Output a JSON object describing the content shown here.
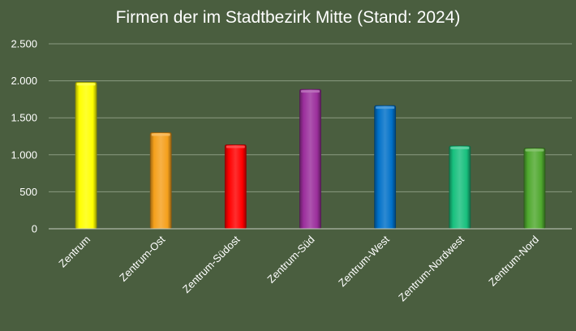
{
  "chart_data": {
    "type": "bar",
    "title": "Firmen der im Stadtbezirk Mitte (Stand: 2024)",
    "xlabel": "",
    "ylabel": "",
    "categories": [
      "Zentrum",
      "Zentrum-Ost",
      "Zentrum-Südost",
      "Zentrum-Süd",
      "Zentrum-West",
      "Zentrum-Nordwest",
      "Zentrum-Nord"
    ],
    "values": [
      1980,
      1300,
      1135,
      1885,
      1665,
      1120,
      1090
    ],
    "bar_colors": [
      "#ffff00",
      "#f5a01c",
      "#ff0000",
      "#9b2f9c",
      "#0070c8",
      "#18c07e",
      "#4fa82e"
    ],
    "ylim": [
      0,
      2500
    ],
    "yticks": [
      0,
      500,
      1000,
      1500,
      2000,
      2500
    ],
    "ytick_labels": [
      "0",
      "500",
      "1.000",
      "1.500",
      "2.000",
      "2.500"
    ],
    "grid": true,
    "legend": "none"
  }
}
